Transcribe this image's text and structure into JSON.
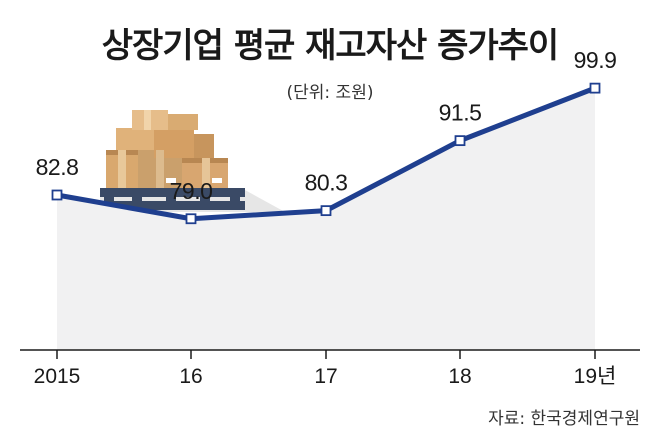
{
  "chart_data": {
    "type": "area",
    "title": "상장기업 평균 재고자산 증가추이",
    "subtitle": "(단위: 조원)",
    "categories": [
      "2015",
      "16",
      "17",
      "18",
      "19년"
    ],
    "values": [
      82.8,
      79.0,
      80.3,
      91.5,
      99.9
    ],
    "value_labels": [
      "82.8",
      "79.0",
      "80.3",
      "91.5",
      "99.9"
    ],
    "source": "자료: 한국경제연구원",
    "xlabel": "",
    "ylabel": "",
    "ylim": [
      58,
      102
    ],
    "grid": false,
    "colors": {
      "line": "#1f3f8f",
      "fill": "#f1f1f2",
      "axis": "#1a1a1a",
      "marker_fill": "#ffffff"
    }
  },
  "illustration": {
    "icon": "stacked-boxes-on-pallet-icon"
  }
}
